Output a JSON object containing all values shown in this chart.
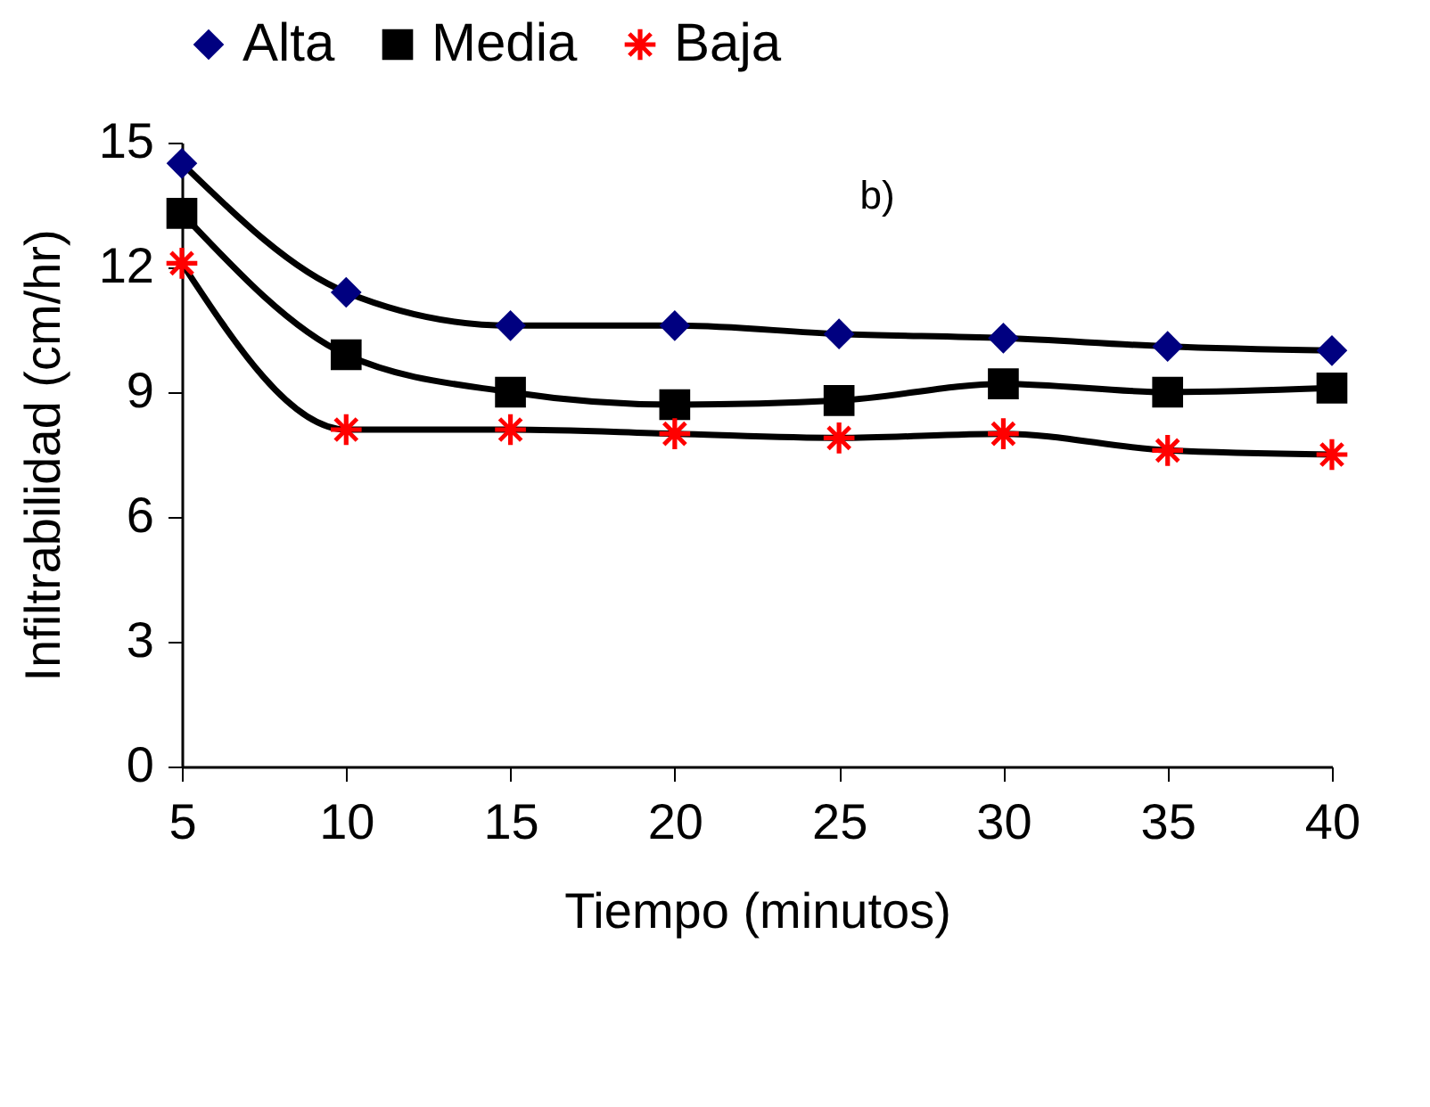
{
  "chart_data": {
    "type": "line",
    "xlabel": "Tiempo (minutos)",
    "ylabel": "Infiltrabilidad (cm/hr)",
    "annotations": [
      "b)"
    ],
    "x": [
      5,
      10,
      15,
      20,
      25,
      30,
      35,
      40
    ],
    "series": [
      {
        "name": "Alta",
        "color": "#000080",
        "marker": "diamond",
        "values": [
          14.5,
          11.4,
          10.6,
          10.6,
          10.4,
          10.3,
          10.1,
          10.0
        ]
      },
      {
        "name": "Media",
        "color": "#000000",
        "marker": "square",
        "values": [
          13.3,
          9.9,
          9.0,
          8.7,
          8.8,
          9.2,
          9.0,
          9.1
        ]
      },
      {
        "name": "Baja",
        "color": "#ff0000",
        "marker": "cross",
        "values": [
          12.1,
          8.1,
          8.1,
          8.0,
          7.9,
          8.0,
          7.6,
          7.5
        ]
      }
    ],
    "xlim": [
      5,
      40
    ],
    "xticks": [
      5,
      10,
      15,
      20,
      25,
      30,
      35,
      40
    ],
    "ylim": [
      0,
      15
    ],
    "yticks": [
      0,
      3,
      6,
      9,
      12,
      15
    ],
    "grid": false,
    "legend": "top",
    "line_style": "solid"
  }
}
